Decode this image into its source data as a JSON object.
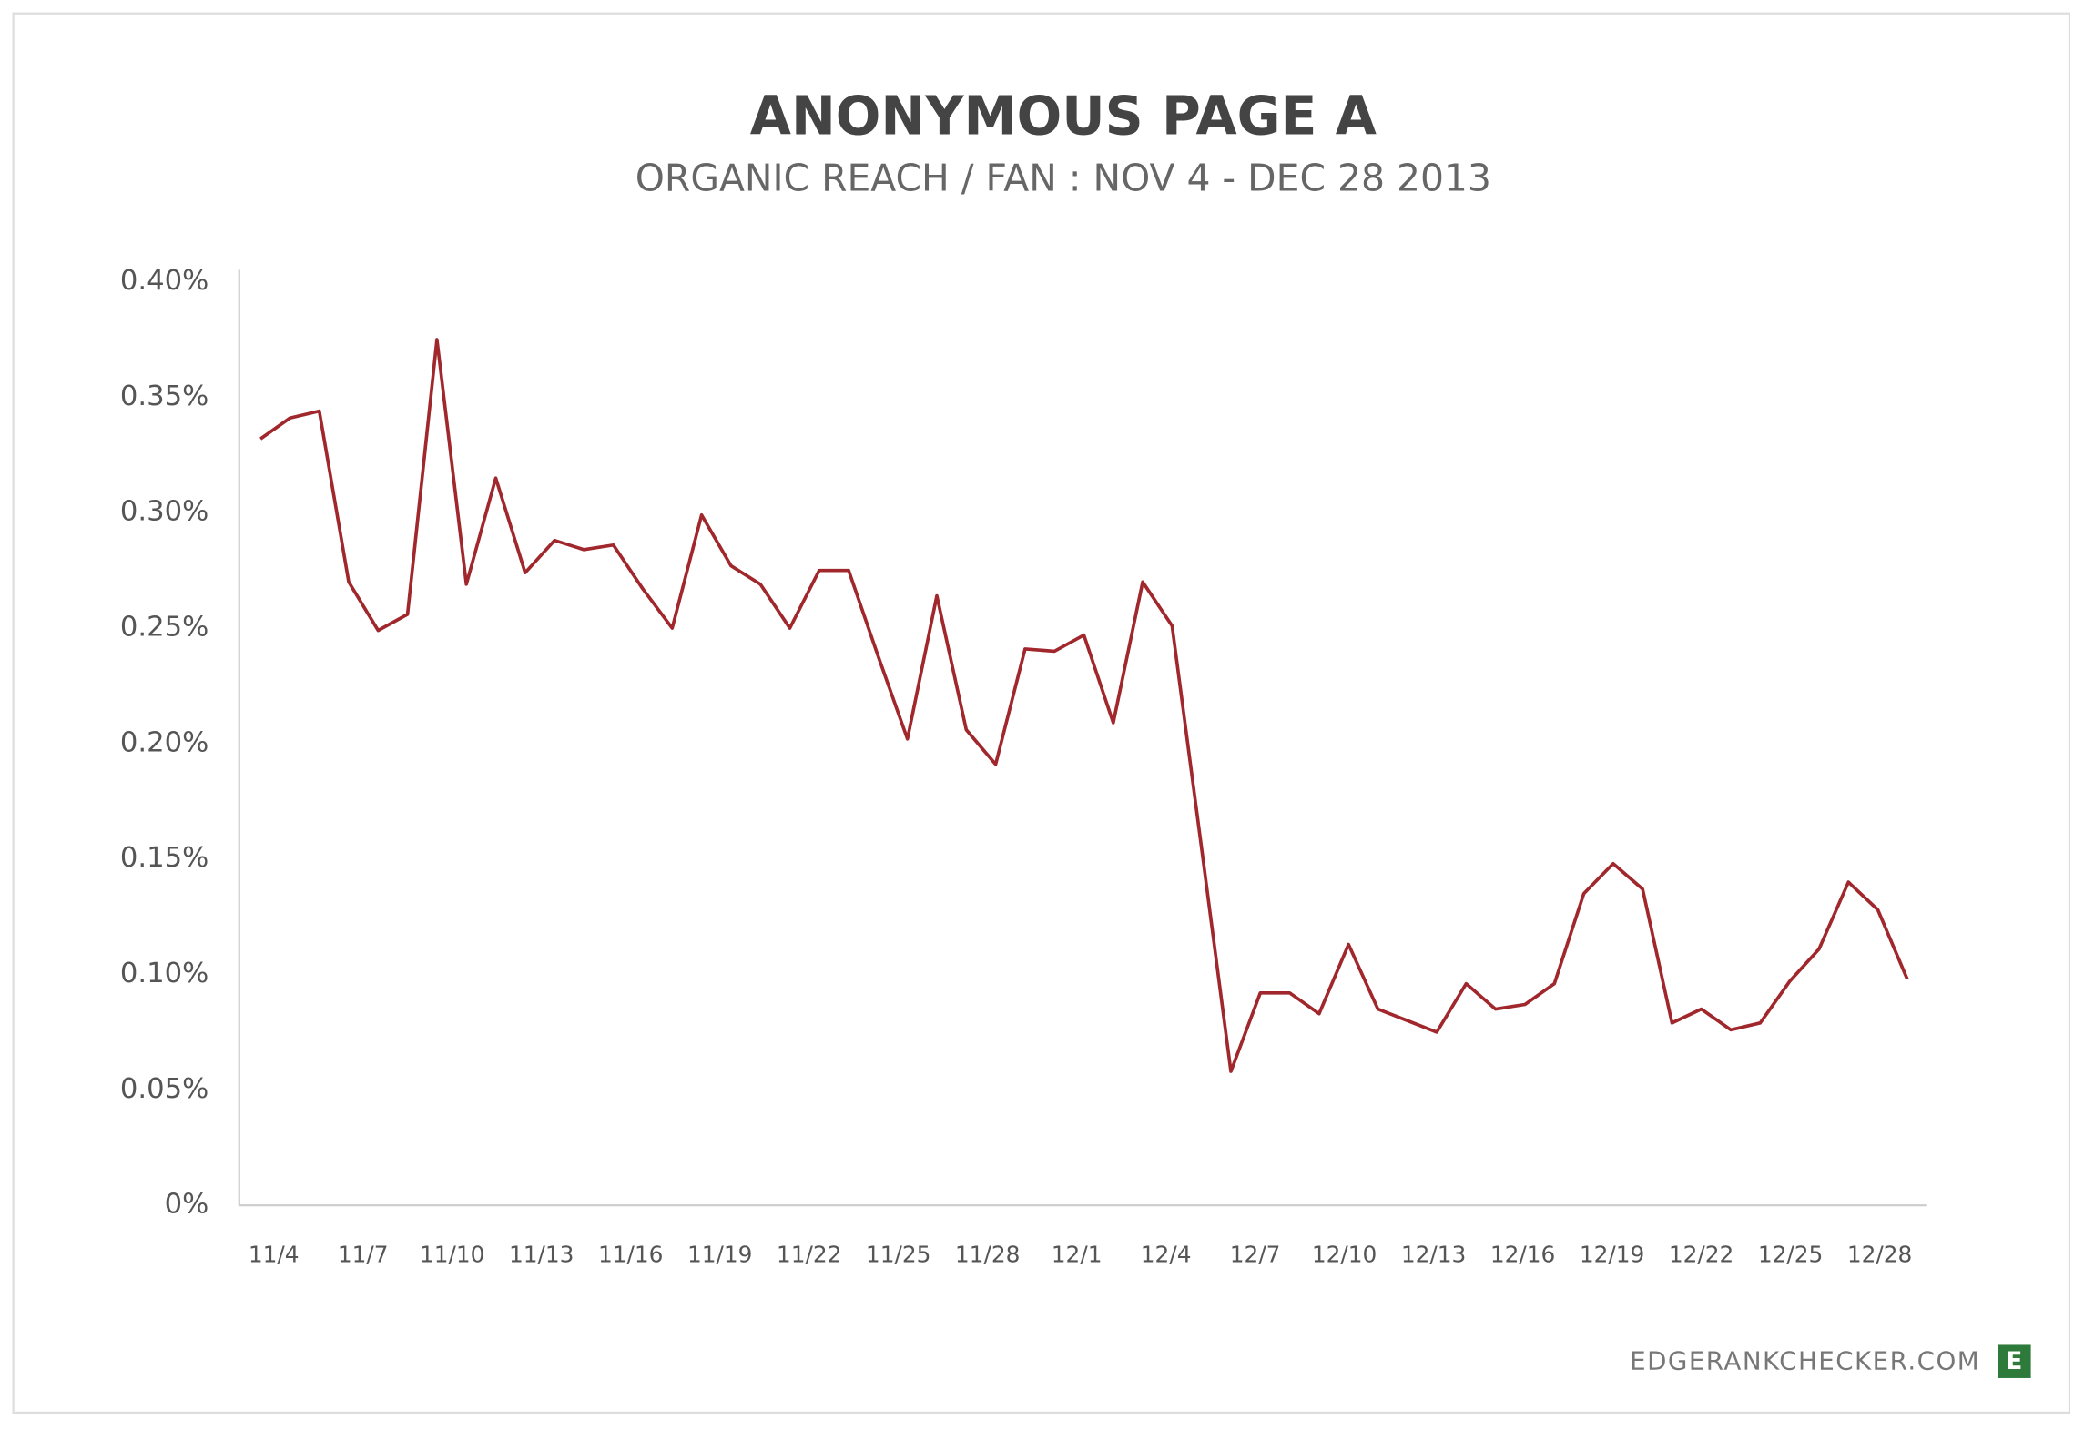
{
  "chart_data": {
    "type": "line",
    "title": "ANONYMOUS PAGE A",
    "subtitle": "ORGANIC REACH / FAN : NOV 4 - DEC 28 2013",
    "footer": "EDGERANKCHECKER.COM",
    "logo": "E",
    "categories": [
      "11/4",
      null,
      null,
      "11/7",
      null,
      null,
      "11/10",
      null,
      null,
      "11/13",
      null,
      null,
      "11/16",
      null,
      null,
      "11/19",
      null,
      null,
      "11/22",
      null,
      null,
      "11/25",
      null,
      null,
      "11/28",
      null,
      null,
      "12/1",
      null,
      null,
      "12/4",
      null,
      null,
      "12/7",
      null,
      null,
      "12/10",
      null,
      null,
      "12/13",
      null,
      null,
      "12/16",
      null,
      null,
      "12/19",
      null,
      null,
      "12/22",
      null,
      null,
      "12/25",
      null,
      null,
      "12/28",
      null,
      null
    ],
    "series": [
      {
        "name": "Organic reach / fan",
        "color": "#a0272c",
        "values": [
          0.332,
          0.341,
          0.344,
          0.27,
          0.249,
          0.256,
          0.375,
          0.269,
          0.315,
          0.274,
          0.288,
          0.284,
          0.286,
          0.267,
          0.25,
          0.299,
          0.277,
          0.269,
          0.25,
          0.275,
          0.275,
          0.238,
          0.202,
          0.264,
          0.206,
          0.191,
          0.241,
          0.24,
          0.247,
          0.209,
          0.27,
          0.251,
          0.155,
          0.058,
          0.092,
          0.092,
          0.083,
          0.113,
          0.085,
          0.08,
          0.075,
          0.096,
          0.085,
          0.087,
          0.096,
          0.135,
          0.148,
          0.137,
          0.079,
          0.085,
          0.076,
          0.079,
          0.097,
          0.111,
          0.14,
          0.128,
          0.098
        ]
      }
    ],
    "ylim": [
      0,
      0.4
    ],
    "yticks": [
      {
        "value": 0,
        "label": "0%"
      },
      {
        "value": 0.05,
        "label": "0.05%"
      },
      {
        "value": 0.1,
        "label": "0.10%"
      },
      {
        "value": 0.15,
        "label": "0.15%"
      },
      {
        "value": 0.2,
        "label": "0.20%"
      },
      {
        "value": 0.25,
        "label": "0.25%"
      },
      {
        "value": 0.3,
        "label": "0.30%"
      },
      {
        "value": 0.35,
        "label": "0.35%"
      },
      {
        "value": 0.4,
        "label": "0.40%"
      }
    ],
    "grid": false
  }
}
